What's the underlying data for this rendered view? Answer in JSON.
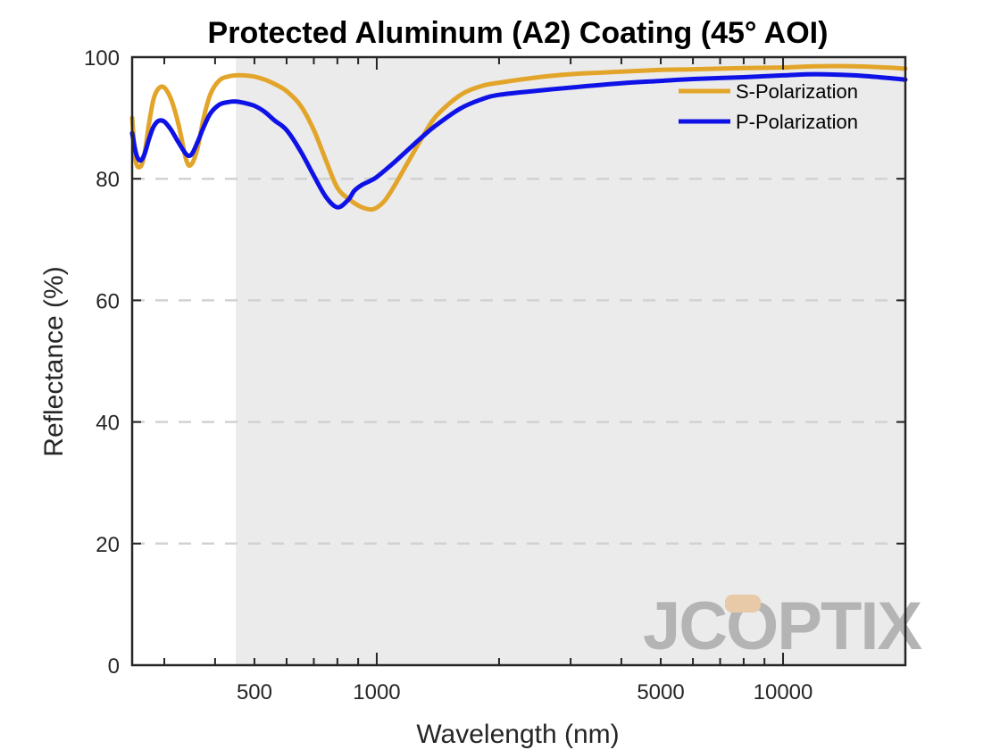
{
  "chart_data": {
    "type": "line",
    "title": "Protected Aluminum (A2) Coating  (45° AOI)",
    "xlabel": "Wavelength (nm)",
    "ylabel": "Reflectance (%)",
    "xscale": "log",
    "xlim": [
      250,
      20000
    ],
    "ylim": [
      0,
      100
    ],
    "yticks": [
      0,
      20,
      40,
      60,
      80,
      100
    ],
    "xticks": [
      500,
      1000,
      5000,
      10000
    ],
    "grid": "horizontal dashed",
    "shaded_region": {
      "from": 450,
      "to": 20000,
      "color": "#ebebeb"
    },
    "legend_position": "top-right",
    "series": [
      {
        "name": "S-Polarization",
        "color": "#e2a52a",
        "x": [
          250,
          255,
          262,
          268,
          275,
          282,
          290,
          300,
          312,
          325,
          340,
          350,
          362,
          375,
          390,
          410,
          430,
          450,
          470,
          500,
          530,
          560,
          600,
          650,
          700,
          750,
          800,
          860,
          920,
          980,
          1040,
          1100,
          1200,
          1300,
          1400,
          1600,
          1800,
          2000,
          2500,
          3000,
          4000,
          5000,
          6000,
          8000,
          10000,
          12000,
          15000,
          18000,
          20000
        ],
        "values": [
          90,
          83,
          82,
          84,
          89,
          93,
          94.8,
          95,
          93,
          89,
          83,
          82.4,
          85,
          90,
          94,
          96.2,
          96.8,
          97,
          97,
          96.8,
          96.3,
          95.6,
          94.4,
          92,
          88,
          83,
          78.5,
          76.5,
          75.3,
          75,
          76.2,
          78.6,
          83,
          87,
          90.3,
          93.7,
          95.2,
          95.8,
          96.7,
          97.2,
          97.6,
          97.9,
          98,
          98.2,
          98.3,
          98.5,
          98.5,
          98.3,
          98.1
        ]
      },
      {
        "name": "P-Polarization",
        "color": "#0f12e6",
        "x": [
          250,
          256,
          262,
          268,
          275,
          282,
          290,
          300,
          312,
          325,
          340,
          350,
          362,
          375,
          390,
          410,
          430,
          450,
          470,
          500,
          530,
          560,
          600,
          650,
          700,
          750,
          800,
          850,
          880,
          920,
          960,
          1000,
          1100,
          1200,
          1300,
          1400,
          1600,
          1800,
          2000,
          2500,
          3000,
          4000,
          5000,
          6000,
          8000,
          10000,
          12000,
          15000,
          18000,
          20000
        ],
        "values": [
          87.5,
          84,
          83,
          84,
          86.5,
          88.5,
          89.5,
          89.4,
          88,
          86,
          84,
          84,
          86,
          88.5,
          90.8,
          92.2,
          92.6,
          92.7,
          92.5,
          92,
          91,
          89.6,
          88,
          84.5,
          80.5,
          77,
          75.3,
          76.5,
          78,
          79,
          79.6,
          80.3,
          82.6,
          84.9,
          87,
          88.8,
          91.5,
          93,
          93.8,
          94.5,
          95,
          95.7,
          96.1,
          96.4,
          96.7,
          97,
          97.2,
          97.0,
          96.6,
          96.3
        ]
      }
    ]
  },
  "watermark": {
    "text": "JCOPTIX",
    "color": "#b4b4b4",
    "accent_color": "#e8c9a8"
  }
}
